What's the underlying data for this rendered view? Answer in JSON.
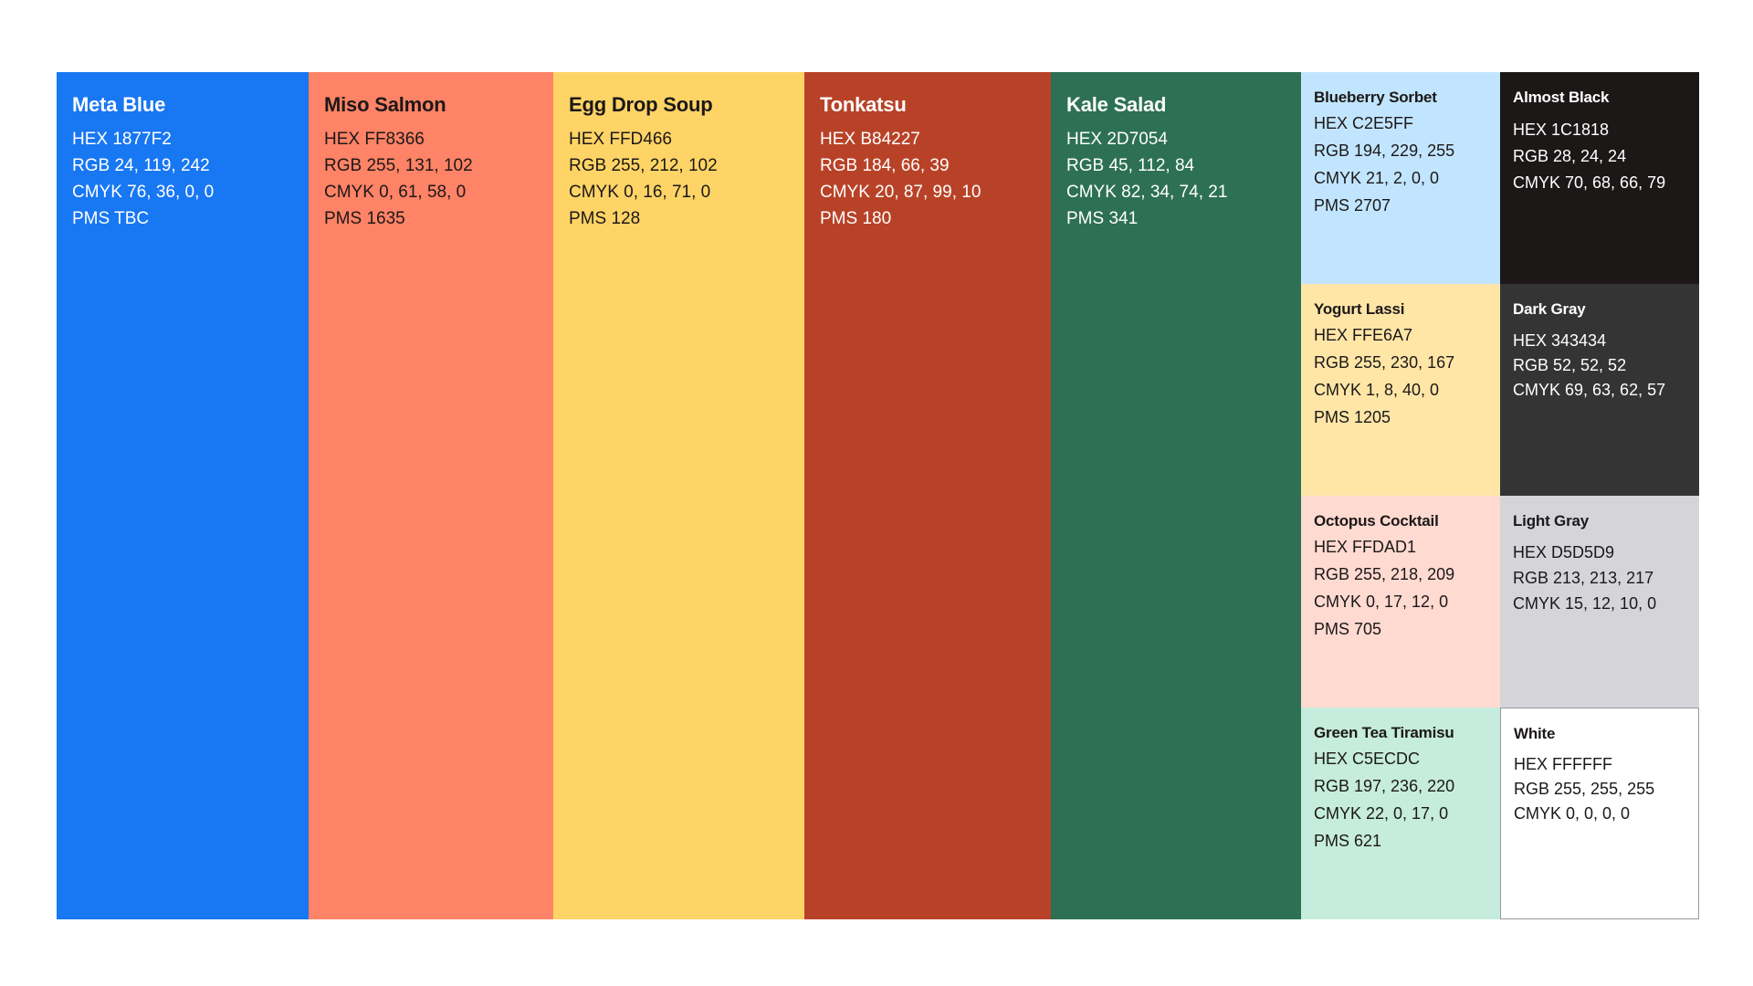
{
  "swatches": [
    {
      "name": "Meta Blue",
      "hex": "HEX 1877F2",
      "rgb": "RGB 24, 119, 242",
      "cmyk": "CMYK 76, 36, 0, 0",
      "pms": "PMS TBC",
      "color": "#1877F2",
      "text_color": "#ffffff"
    },
    {
      "name": "Miso Salmon",
      "hex": "HEX FF8366",
      "rgb": "RGB 255, 131, 102",
      "cmyk": "CMYK 0, 61, 58, 0",
      "pms": "PMS 1635",
      "color": "#FF8366",
      "text_color": "#1c1818"
    },
    {
      "name": "Egg Drop Soup",
      "hex": "HEX FFD466",
      "rgb": "RGB 255, 212, 102",
      "cmyk": "CMYK 0, 16, 71, 0",
      "pms": "PMS 128",
      "color": "#FFD466",
      "text_color": "#1c1818"
    },
    {
      "name": "Tonkatsu",
      "hex": "HEX B84227",
      "rgb": "RGB 184, 66, 39",
      "cmyk": "CMYK 20, 87, 99, 10",
      "pms": "PMS 180",
      "color": "#B84227",
      "text_color": "#ffffff"
    },
    {
      "name": "Kale Salad",
      "hex": "HEX 2D7054",
      "rgb": "RGB 45, 112, 84",
      "cmyk": "CMYK 82, 34, 74, 21",
      "pms": "PMS 341",
      "color": "#2D7054",
      "text_color": "#ffffff"
    },
    {
      "name": "Blueberry Sorbet",
      "hex": "HEX C2E5FF",
      "rgb": "RGB 194, 229, 255",
      "cmyk": "CMYK 21, 2, 0, 0",
      "pms": "PMS 2707",
      "color": "#C2E5FF",
      "text_color": "#1c1818"
    },
    {
      "name": "Yogurt Lassi",
      "hex": "HEX FFE6A7",
      "rgb": "RGB 255, 230, 167",
      "cmyk": "CMYK 1, 8, 40, 0",
      "pms": "PMS 1205",
      "color": "#FFE6A7",
      "text_color": "#1c1818"
    },
    {
      "name": "Octopus Cocktail",
      "hex": "HEX FFDAD1",
      "rgb": "RGB 255, 218, 209",
      "cmyk": "CMYK 0, 17, 12, 0",
      "pms": "PMS 705",
      "color": "#FFDAD1",
      "text_color": "#1c1818"
    },
    {
      "name": "Green Tea Tiramisu",
      "hex": "HEX C5ECDC",
      "rgb": "RGB 197, 236, 220",
      "cmyk": "CMYK 22, 0, 17, 0",
      "pms": "PMS 621",
      "color": "#C5ECDC",
      "text_color": "#1c1818"
    },
    {
      "name": "Almost Black",
      "hex": "HEX 1C1818",
      "rgb": "RGB 28, 24, 24",
      "cmyk": "CMYK 70, 68, 66, 79",
      "color": "#1C1818",
      "text_color": "#ffffff"
    },
    {
      "name": "Dark Gray",
      "hex": "HEX 343434",
      "rgb": "RGB 52, 52, 52",
      "cmyk": "CMYK 69, 63, 62, 57",
      "color": "#343434",
      "text_color": "#ffffff"
    },
    {
      "name": "Light Gray",
      "hex": "HEX D5D5D9",
      "rgb": "RGB 213, 213, 217",
      "cmyk": "CMYK 15, 12, 10, 0",
      "color": "#D5D5D9",
      "text_color": "#1c1818"
    },
    {
      "name": "White",
      "hex": "HEX FFFFFF",
      "rgb": "RGB 255, 255, 255",
      "cmyk": "CMYK 0, 0, 0, 0",
      "color": "#FFFFFF",
      "text_color": "#1c1818"
    }
  ]
}
